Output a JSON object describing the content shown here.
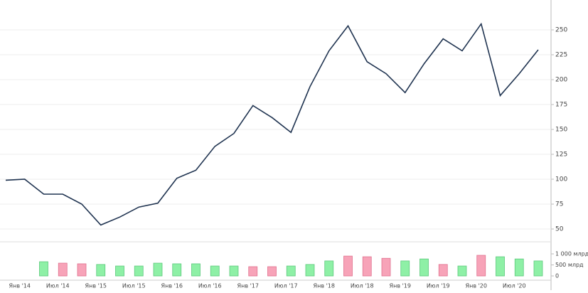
{
  "chart_data": [
    {
      "type": "line",
      "color": "#1f3350",
      "grid": true,
      "categories": [
        null,
        "Янв '14",
        null,
        "Июл '14",
        null,
        "Янв '15",
        null,
        "Июл '15",
        null,
        "Янв '16",
        null,
        "Июл '16",
        null,
        "Янв '17",
        null,
        "Июл '17",
        null,
        "Янв '18",
        null,
        "Июл '18",
        null,
        "Янв '19",
        null,
        "Июл '19",
        null,
        "Янв '20",
        null,
        "Июл '20",
        null
      ],
      "values": [
        99,
        100,
        85,
        85,
        75,
        54,
        62,
        72,
        76,
        101,
        109,
        133,
        146,
        174,
        162,
        147,
        193,
        229,
        254,
        218,
        206,
        187,
        216,
        241,
        229,
        256,
        184,
        206,
        230
      ],
      "ylim": [
        40,
        280
      ],
      "yticks": [
        50,
        75,
        100,
        125,
        150,
        175,
        200,
        225,
        250
      ]
    },
    {
      "type": "bar",
      "values": [
        null,
        null,
        645,
        580,
        550,
        520,
        450,
        450,
        580,
        550,
        550,
        450,
        450,
        420,
        420,
        450,
        520,
        680,
        900,
        870,
        800,
        680,
        770,
        520,
        450,
        935,
        870,
        770,
        680
      ],
      "colors": [
        null,
        null,
        "#8ef0a6",
        "#f7a3b8",
        "#f7a3b8",
        "#8ef0a6",
        "#8ef0a6",
        "#8ef0a6",
        "#8ef0a6",
        "#8ef0a6",
        "#8ef0a6",
        "#8ef0a6",
        "#8ef0a6",
        "#f7a3b8",
        "#f7a3b8",
        "#8ef0a6",
        "#8ef0a6",
        "#8ef0a6",
        "#f7a3b8",
        "#f7a3b8",
        "#f7a3b8",
        "#8ef0a6",
        "#8ef0a6",
        "#f7a3b8",
        "#8ef0a6",
        "#f7a3b8",
        "#8ef0a6",
        "#8ef0a6",
        "#8ef0a6"
      ],
      "ylim": [
        0,
        1500
      ],
      "yticks": [
        0,
        {
          "value": 500,
          "label": "500 млрд"
        },
        {
          "value": 1000,
          "label": "1 000 млрд"
        }
      ]
    }
  ]
}
